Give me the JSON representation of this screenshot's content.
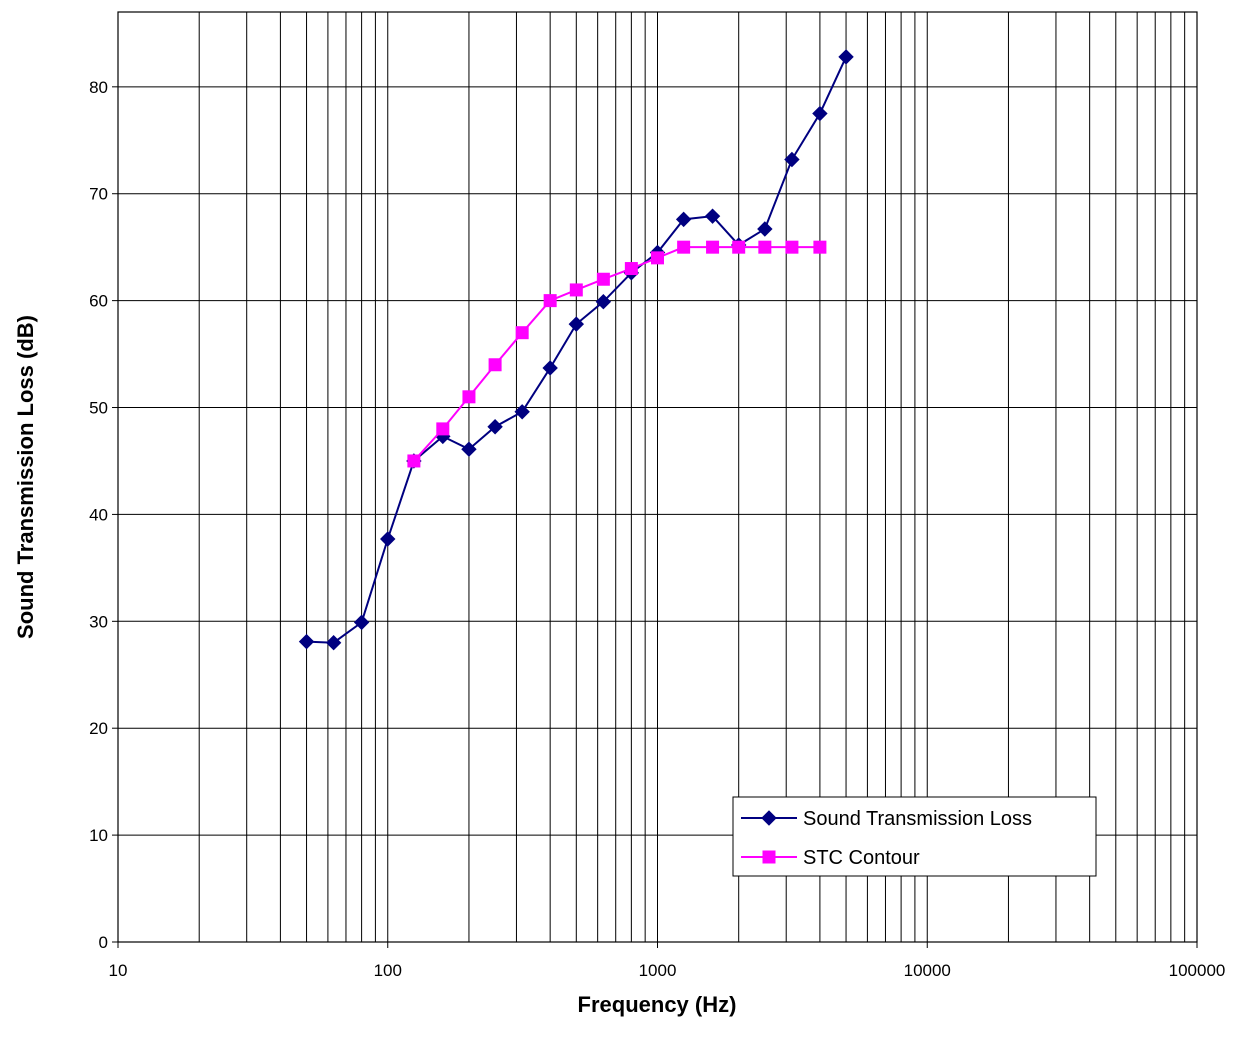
{
  "chart_data": {
    "type": "line",
    "title": "",
    "xlabel": "Frequency (Hz)",
    "ylabel": "Sound Transmission Loss (dB)",
    "x_scale": "log",
    "xlim": [
      10,
      100000
    ],
    "ylim": [
      0,
      80
    ],
    "ylim_plot_max": 87,
    "x_ticks": [
      "10",
      "100",
      "1000",
      "10000",
      "100000"
    ],
    "y_ticks": [
      "0",
      "10",
      "20",
      "30",
      "40",
      "50",
      "60",
      "70",
      "80"
    ],
    "grid": true,
    "legend_position": "bottom-right",
    "series": [
      {
        "name": "Sound Transmission Loss",
        "color": "#000080",
        "marker": "diamond",
        "x": [
          50,
          63,
          80,
          100,
          125,
          160,
          200,
          250,
          315,
          400,
          500,
          630,
          800,
          1000,
          1250,
          1600,
          2000,
          2500,
          3150,
          4000,
          5000
        ],
        "y": [
          28.1,
          28.0,
          29.9,
          37.7,
          45.0,
          47.3,
          46.1,
          48.2,
          49.6,
          53.7,
          57.8,
          59.9,
          62.6,
          64.5,
          67.6,
          67.9,
          65.2,
          66.7,
          73.2,
          77.5,
          82.8
        ]
      },
      {
        "name": "STC Contour",
        "color": "#ff00ff",
        "marker": "square",
        "x": [
          125,
          160,
          200,
          250,
          315,
          400,
          500,
          630,
          800,
          1000,
          1250,
          1600,
          2000,
          2500,
          3150,
          4000
        ],
        "y": [
          45,
          48,
          51,
          54,
          57,
          60,
          61,
          62,
          63,
          64,
          65,
          65,
          65,
          65,
          65,
          65
        ]
      }
    ]
  }
}
